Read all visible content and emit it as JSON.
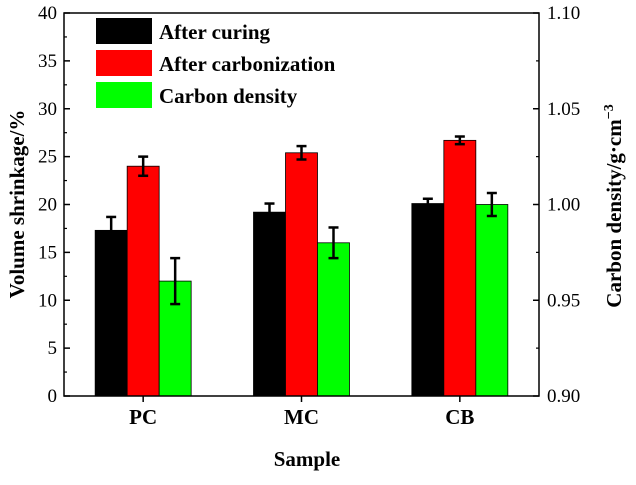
{
  "chart_data": {
    "type": "bar",
    "categories": [
      "PC",
      "MC",
      "CB"
    ],
    "xlabel": "Sample",
    "ylabel_left": "Volume shrinkage/%",
    "ylabel_right": "Carbon density/g·cm",
    "ylabel_right_superscript": "−3",
    "ylim_left": [
      0,
      40
    ],
    "yticks_left": [
      "0",
      "5",
      "10",
      "15",
      "20",
      "25",
      "30",
      "35",
      "40"
    ],
    "ylim_right": [
      0.9,
      1.1
    ],
    "yticks_right": [
      "0.90",
      "0.95",
      "1.00",
      "1.05",
      "1.10"
    ],
    "grid": false,
    "legend_position": "top-left",
    "series": [
      {
        "name": "After curing",
        "axis": "left",
        "color": "#000000",
        "values": [
          17.3,
          19.2,
          20.1
        ],
        "errors": [
          1.4,
          0.9,
          0.5
        ]
      },
      {
        "name": "After carbonization",
        "axis": "left",
        "color": "#ff0000",
        "values": [
          24.0,
          25.4,
          26.7
        ],
        "errors": [
          1.0,
          0.7,
          0.4
        ]
      },
      {
        "name": "Carbon density",
        "axis": "right",
        "color": "#00ff00",
        "values": [
          0.96,
          0.98,
          1.0
        ],
        "errors": [
          0.012,
          0.008,
          0.006
        ]
      }
    ]
  }
}
